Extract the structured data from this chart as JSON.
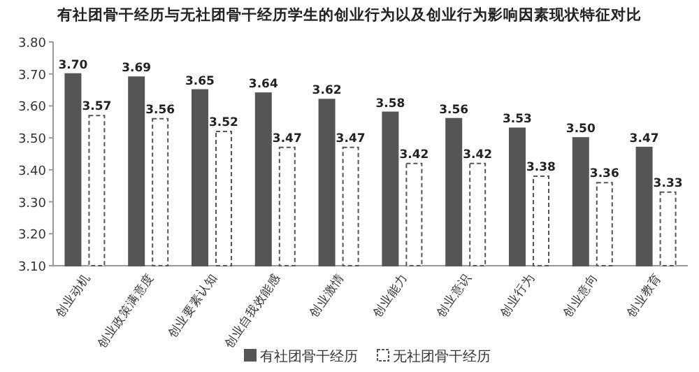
{
  "chart_data": {
    "type": "bar",
    "title": "有社团骨干经历与无社团骨干经历学生的创业行为以及创业行为影响因素现状特征对比",
    "categories": [
      "创业动机",
      "创业政策满意度",
      "创业要素认知",
      "创业自我效能感",
      "创业激情",
      "创业能力",
      "创业意识",
      "创业行为",
      "创业意向",
      "创业教育"
    ],
    "series": [
      {
        "name": "有社团骨干经历",
        "color": "#555555",
        "values": [
          3.7,
          3.69,
          3.65,
          3.64,
          3.62,
          3.58,
          3.56,
          3.53,
          3.5,
          3.47
        ],
        "value_labels": [
          "3.70",
          "3.69",
          "3.65",
          "3.64",
          "3.62",
          "3.58",
          "3.56",
          "3.53",
          "3.50",
          "3.47"
        ]
      },
      {
        "name": "无社团骨干经历",
        "color": "#ffffff",
        "line_style": "dashed",
        "values": [
          3.57,
          3.56,
          3.52,
          3.47,
          3.47,
          3.42,
          3.42,
          3.38,
          3.36,
          3.33
        ],
        "value_labels": [
          "3.57",
          "3.56",
          "3.52",
          "3.47",
          "3.47",
          "3.42",
          "3.42",
          "3.38",
          "3.36",
          "3.33"
        ]
      }
    ],
    "ylim": [
      3.1,
      3.8
    ],
    "yticks": [
      {
        "value": 3.1,
        "label": "3.10"
      },
      {
        "value": 3.2,
        "label": "3.20"
      },
      {
        "value": 3.3,
        "label": "3.30"
      },
      {
        "value": 3.4,
        "label": "3.40"
      },
      {
        "value": 3.5,
        "label": "3.50"
      },
      {
        "value": 3.6,
        "label": "3.60"
      },
      {
        "value": 3.7,
        "label": "3.70"
      },
      {
        "value": 3.8,
        "label": "3.80"
      }
    ],
    "legend": "bottom"
  }
}
